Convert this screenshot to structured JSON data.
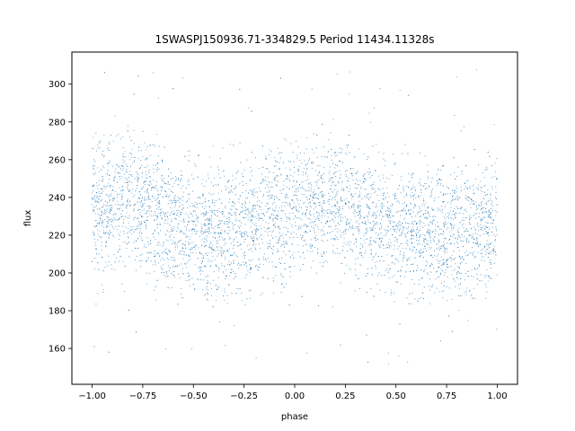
{
  "chart_data": {
    "type": "scatter",
    "title": "1SWASPJ150936.71-334829.5 Period 11434.11328s",
    "xlabel": "phase",
    "ylabel": "flux",
    "xlim": [
      -1.1,
      1.1
    ],
    "ylim": [
      141,
      317
    ],
    "xticks": [
      -1.0,
      -0.75,
      -0.5,
      -0.25,
      0.0,
      0.25,
      0.5,
      0.75,
      1.0
    ],
    "xtick_labels": [
      "−1.00",
      "−0.75",
      "−0.50",
      "−0.25",
      "0.00",
      "0.25",
      "0.50",
      "0.75",
      "1.00"
    ],
    "yticks": [
      160,
      180,
      200,
      220,
      240,
      260,
      280,
      300
    ],
    "ytick_labels": [
      "160",
      "180",
      "200",
      "220",
      "240",
      "260",
      "280",
      "300"
    ],
    "grid": false,
    "color": "#1f77b4",
    "series": [
      {
        "x": [
          -1.0,
          -0.95,
          -0.9,
          -0.85,
          -0.8,
          -0.75,
          -0.7,
          -0.65,
          -0.6,
          -0.55,
          -0.5,
          -0.45,
          -0.4,
          -0.35,
          -0.3,
          -0.25,
          -0.2,
          -0.15,
          -0.1,
          -0.05,
          0.0,
          0.05,
          0.1,
          0.15,
          0.2,
          0.25,
          0.3,
          0.35,
          0.4,
          0.45,
          0.5,
          0.55,
          0.6,
          0.65,
          0.7,
          0.75,
          0.8,
          0.85,
          0.9,
          0.95,
          1.0
        ],
        "y": [
          231,
          234,
          236,
          237,
          238,
          237,
          235,
          231,
          227,
          223,
          221,
          221,
          222,
          223,
          223,
          224,
          225,
          227,
          229,
          231,
          232,
          233,
          234,
          235,
          236,
          236,
          234,
          231,
          228,
          225,
          223,
          222,
          221,
          221,
          221,
          221,
          222,
          223,
          224,
          225,
          228
        ],
        "y_min": [
          196,
          197,
          198,
          199,
          200,
          199,
          197,
          194,
          191,
          191,
          190,
          190,
          190,
          191,
          191,
          191,
          192,
          193,
          195,
          197,
          199,
          200,
          201,
          202,
          202,
          201,
          199,
          196,
          194,
          192,
          191,
          191,
          191,
          191,
          191,
          191,
          192,
          193,
          194,
          195,
          196
        ],
        "y_max": [
          266,
          268,
          269,
          270,
          270,
          270,
          268,
          266,
          263,
          261,
          260,
          260,
          260,
          261,
          261,
          262,
          262,
          263,
          264,
          265,
          266,
          267,
          268,
          268,
          268,
          267,
          266,
          265,
          263,
          262,
          260,
          260,
          260,
          260,
          260,
          260,
          261,
          261,
          262,
          263,
          264
        ]
      }
    ]
  }
}
